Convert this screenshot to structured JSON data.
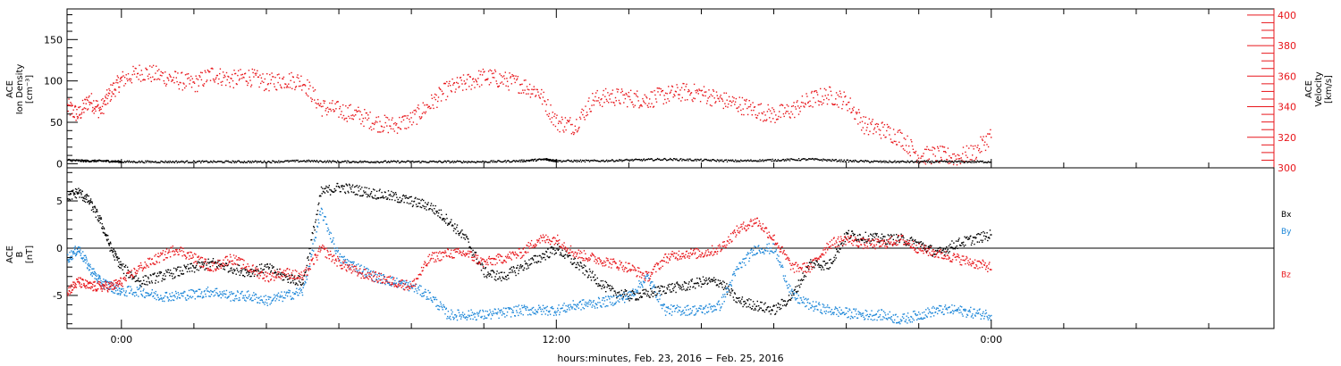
{
  "colors": {
    "black": "#000000",
    "red": "#e8161b",
    "blue": "#1a85d8",
    "frame": "#000000"
  },
  "xaxis": {
    "label": "hours:minutes, Feb. 23, 2016 − Feb. 25, 2016",
    "range_hours": [
      -1.5,
      31.8
    ],
    "major_ticks": [
      {
        "hour": 0,
        "label": "0:00"
      },
      {
        "hour": 12,
        "label": "12:00"
      },
      {
        "hour": 24,
        "label": "0:00"
      }
    ],
    "minor_step_hours": 2
  },
  "chart_data": [
    {
      "type": "scatter",
      "panel": "top",
      "ylabel_left": [
        "ACE",
        "Ion Density",
        "[cm⁻³]"
      ],
      "ylabel_right": [
        "ACE",
        "Velocity",
        "[km/s]"
      ],
      "ylim_left": [
        -5,
        187
      ],
      "ylim_right": [
        300,
        404
      ],
      "left_ticks": [
        "0",
        "50",
        "100",
        "150"
      ],
      "left_tick_values": [
        0,
        50,
        100,
        150
      ],
      "right_ticks": [
        "300",
        "320",
        "340",
        "360",
        "380",
        "400"
      ],
      "right_tick_values": [
        300,
        320,
        340,
        360,
        380,
        400
      ],
      "series": [
        {
          "axis": "left",
          "color": "black",
          "x": [
            -1.5,
            -1.0,
            -0.5,
            0,
            1,
            2,
            3,
            4,
            5,
            6,
            7,
            8,
            9,
            10,
            11,
            11.7,
            12,
            13,
            14,
            15,
            16,
            17,
            18,
            19,
            20,
            21,
            22,
            23,
            24
          ],
          "values": [
            5,
            4,
            4,
            3,
            3,
            3,
            3,
            3,
            4,
            3,
            3,
            3,
            3,
            3,
            4,
            6,
            4,
            4,
            5,
            6,
            5,
            4,
            5,
            6,
            4,
            3,
            3,
            3,
            3
          ]
        },
        {
          "axis": "right",
          "color": "red",
          "x": [
            -1.5,
            -1.2,
            -0.9,
            -0.6,
            -0.3,
            0.0,
            0.5,
            1.0,
            1.5,
            2.0,
            2.5,
            3.0,
            3.5,
            4.0,
            4.5,
            5.0,
            5.5,
            6.0,
            6.5,
            7.0,
            7.5,
            8.0,
            8.5,
            9.0,
            9.5,
            10.0,
            10.5,
            11.0,
            11.5,
            12.0,
            12.5,
            13.0,
            13.5,
            14.0,
            14.5,
            15.0,
            15.5,
            16.0,
            16.5,
            17.0,
            17.5,
            18.0,
            18.5,
            19.0,
            19.5,
            20.0,
            20.5,
            21.0,
            21.5,
            22.0,
            22.5,
            23.0,
            23.5,
            24.0
          ],
          "values": [
            340,
            335,
            345,
            338,
            350,
            358,
            363,
            361,
            358,
            355,
            362,
            358,
            360,
            356,
            358,
            357,
            340,
            338,
            335,
            330,
            328,
            332,
            342,
            352,
            356,
            360,
            358,
            355,
            350,
            330,
            328,
            345,
            347,
            346,
            345,
            348,
            350,
            349,
            345,
            342,
            338,
            335,
            338,
            345,
            348,
            344,
            328,
            325,
            320,
            308,
            309,
            307,
            310,
            322
          ]
        }
      ]
    },
    {
      "type": "scatter",
      "panel": "bottom",
      "ylabel_left": [
        "ACE",
        "B",
        "[nT]"
      ],
      "ylim": [
        -8.5,
        8.5
      ],
      "ticks": [
        "-5",
        "0",
        "5"
      ],
      "tick_values": [
        -5,
        0,
        5
      ],
      "legend": [
        "Bx",
        "By",
        "Bz"
      ],
      "legend_placement": "right",
      "series": [
        {
          "name": "Bx",
          "color": "black",
          "x": [
            -1.5,
            -1.2,
            -0.9,
            -0.6,
            -0.3,
            0.0,
            0.5,
            1.0,
            1.5,
            2.0,
            2.5,
            3.0,
            3.5,
            4.0,
            4.5,
            5.0,
            5.5,
            6.0,
            6.5,
            7.0,
            7.5,
            8.0,
            8.5,
            9.0,
            9.5,
            10.0,
            10.5,
            11.0,
            11.5,
            12.0,
            12.5,
            13.0,
            13.5,
            14.0,
            14.5,
            15.0,
            15.5,
            16.0,
            16.5,
            17.0,
            17.5,
            18.0,
            18.5,
            19.0,
            19.5,
            20.0,
            20.5,
            21.0,
            21.5,
            22.0,
            22.5,
            23.0,
            23.5,
            24.0
          ],
          "values": [
            5.5,
            6.0,
            5.0,
            3.0,
            0.0,
            -2.0,
            -3.5,
            -3.0,
            -2.5,
            -2.0,
            -1.5,
            -2.0,
            -2.5,
            -2.0,
            -3.0,
            -3.5,
            6.0,
            6.5,
            6.2,
            5.8,
            5.5,
            5.0,
            4.5,
            3.0,
            1.0,
            -2.5,
            -3.0,
            -2.0,
            -1.0,
            0.0,
            -1.5,
            -3.0,
            -4.5,
            -5.0,
            -4.8,
            -4.2,
            -4.0,
            -3.5,
            -3.5,
            -5.5,
            -6.0,
            -6.5,
            -5.0,
            -1.5,
            -1.8,
            1.5,
            1.2,
            1.0,
            1.0,
            0.5,
            -0.5,
            0.5,
            1.0,
            1.5
          ]
        },
        {
          "name": "By",
          "color": "blue",
          "x": [
            -1.5,
            -1.2,
            -0.9,
            -0.6,
            -0.3,
            0.0,
            0.5,
            1.0,
            1.5,
            2.0,
            2.5,
            3.0,
            3.5,
            4.0,
            4.5,
            5.0,
            5.5,
            6.0,
            6.5,
            7.0,
            7.5,
            8.0,
            8.5,
            9.0,
            9.5,
            10.0,
            10.5,
            11.0,
            11.5,
            12.0,
            12.5,
            13.0,
            13.5,
            14.0,
            14.5,
            15.0,
            15.5,
            16.0,
            16.5,
            17.0,
            17.5,
            18.0,
            18.5,
            19.0,
            19.5,
            20.0,
            20.5,
            21.0,
            21.5,
            22.0,
            22.5,
            23.0,
            23.5,
            24.0
          ],
          "values": [
            -1.0,
            0.0,
            -2.0,
            -3.5,
            -4.0,
            -4.5,
            -4.5,
            -5.0,
            -5.0,
            -4.8,
            -4.5,
            -5.0,
            -5.0,
            -5.5,
            -5.0,
            -4.5,
            4.0,
            -1.0,
            -2.0,
            -3.0,
            -3.5,
            -4.0,
            -5.0,
            -7.0,
            -7.0,
            -7.0,
            -6.8,
            -6.5,
            -6.5,
            -6.5,
            -6.0,
            -5.8,
            -5.5,
            -5.0,
            -3.0,
            -6.5,
            -6.5,
            -6.5,
            -6.0,
            -2.0,
            0.0,
            0.0,
            -5.0,
            -6.0,
            -6.5,
            -6.8,
            -7.0,
            -7.0,
            -7.5,
            -7.0,
            -6.5,
            -6.5,
            -6.8,
            -7.0
          ]
        },
        {
          "name": "Bz",
          "color": "red",
          "x": [
            -1.5,
            -1.2,
            -0.9,
            -0.6,
            -0.3,
            0.0,
            0.5,
            1.0,
            1.5,
            2.0,
            2.5,
            3.0,
            3.5,
            4.0,
            4.5,
            5.0,
            5.5,
            6.0,
            6.5,
            7.0,
            7.5,
            8.0,
            8.5,
            9.0,
            9.5,
            10.0,
            10.5,
            11.0,
            11.5,
            12.0,
            12.5,
            13.0,
            13.5,
            14.0,
            14.5,
            15.0,
            15.5,
            16.0,
            16.5,
            17.0,
            17.5,
            18.0,
            18.5,
            19.0,
            19.5,
            20.0,
            20.5,
            21.0,
            21.5,
            22.0,
            22.5,
            23.0,
            23.5,
            24.0
          ],
          "values": [
            -4.5,
            -3.5,
            -4.0,
            -4.0,
            -4.0,
            -3.5,
            -2.0,
            -1.0,
            0.0,
            -1.0,
            -2.0,
            -1.0,
            -2.0,
            -3.0,
            -2.5,
            -3.0,
            0.0,
            -1.5,
            -2.5,
            -3.0,
            -3.5,
            -4.0,
            -1.0,
            -0.5,
            -0.5,
            -1.5,
            -1.0,
            -0.5,
            1.0,
            1.0,
            -0.5,
            -1.0,
            -1.5,
            -2.0,
            -3.0,
            -1.0,
            -0.5,
            -0.5,
            0.0,
            2.0,
            3.0,
            1.0,
            -2.0,
            -2.0,
            0.5,
            1.0,
            0.5,
            0.5,
            1.0,
            0.0,
            -0.5,
            -1.0,
            -1.5,
            -2.0
          ]
        }
      ]
    }
  ]
}
